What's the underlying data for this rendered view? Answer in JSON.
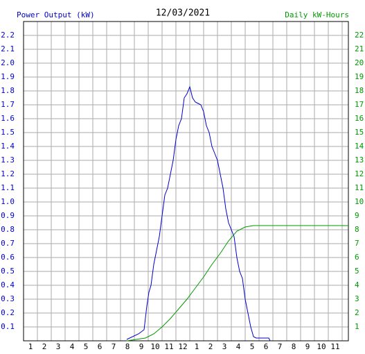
{
  "chart_data": {
    "type": "line",
    "title": "12/03/2021",
    "ylabel": "Power Output (kW)",
    "y2label": "Daily kW-Hours",
    "xlim": [
      0.5,
      23.95
    ],
    "xticks": [
      1,
      2,
      3,
      4,
      5,
      6,
      7,
      8,
      9,
      10,
      11,
      12,
      {
        "value": 13,
        "label": "1"
      },
      {
        "value": 14,
        "label": "2"
      },
      {
        "value": 15,
        "label": "3"
      },
      {
        "value": 16,
        "label": "4"
      },
      {
        "value": 17,
        "label": "5"
      },
      {
        "value": 18,
        "label": "6"
      },
      {
        "value": 19,
        "label": "7"
      },
      {
        "value": 20,
        "label": "8"
      },
      {
        "value": 21,
        "label": "9"
      },
      {
        "value": 22,
        "label": "10"
      },
      {
        "value": 23,
        "label": "11"
      }
    ],
    "ylim": [
      0,
      2.3
    ],
    "yticks": [
      0.1,
      0.2,
      0.3,
      0.4,
      0.5,
      0.6,
      0.7,
      0.8,
      0.9,
      {
        "value": 1.0,
        "label": "1.0"
      },
      1.1,
      1.2,
      1.3,
      1.4,
      1.5,
      1.6,
      1.7,
      1.8,
      1.9,
      {
        "value": 2.0,
        "label": "2.0"
      },
      2.1,
      2.2
    ],
    "y2lim": [
      0,
      23
    ],
    "y2ticks": [
      1,
      2,
      3,
      4,
      5,
      6,
      7,
      8,
      9,
      10,
      11,
      12,
      13,
      14,
      15,
      16,
      17,
      18,
      19,
      20,
      21,
      22
    ],
    "grid": true,
    "series": [
      {
        "name": "Power Output (kW)",
        "color": "#0000cc",
        "x": [
          7.95,
          8.8,
          9.2,
          9.4,
          9.55,
          9.7,
          9.9,
          10.1,
          10.3,
          10.5,
          10.7,
          10.9,
          11.1,
          11.3,
          11.5,
          11.7,
          11.9,
          12.1,
          12.3,
          12.5,
          12.7,
          12.9,
          13.1,
          13.3,
          13.5,
          13.7,
          13.9,
          14.1,
          14.3,
          14.5,
          14.7,
          14.9,
          15.1,
          15.3,
          15.5,
          15.7,
          15.9,
          16.1,
          16.3,
          16.5,
          16.7,
          16.9,
          17.1,
          17.3,
          18.2,
          18.3
        ],
        "values": [
          0.01,
          0.05,
          0.08,
          0.25,
          0.35,
          0.4,
          0.55,
          0.65,
          0.75,
          0.9,
          1.05,
          1.1,
          1.2,
          1.3,
          1.45,
          1.55,
          1.6,
          1.75,
          1.78,
          1.83,
          1.75,
          1.72,
          1.71,
          1.7,
          1.65,
          1.55,
          1.5,
          1.4,
          1.35,
          1.3,
          1.2,
          1.1,
          0.95,
          0.85,
          0.8,
          0.75,
          0.6,
          0.5,
          0.45,
          0.3,
          0.2,
          0.1,
          0.03,
          0.02,
          0.02,
          0
        ]
      },
      {
        "name": "Daily kW-Hours",
        "color": "#009900",
        "axis": "y2",
        "x": [
          7.95,
          9.3,
          9.9,
          10.5,
          11.1,
          11.7,
          12.3,
          12.9,
          13.5,
          14.1,
          14.7,
          15.3,
          15.9,
          16.5,
          17.1,
          23.95
        ],
        "values": [
          0,
          0.2,
          0.5,
          1,
          1.6,
          2.3,
          3.0,
          3.8,
          4.6,
          5.5,
          6.3,
          7.2,
          7.9,
          8.2,
          8.3,
          8.3
        ]
      }
    ]
  }
}
